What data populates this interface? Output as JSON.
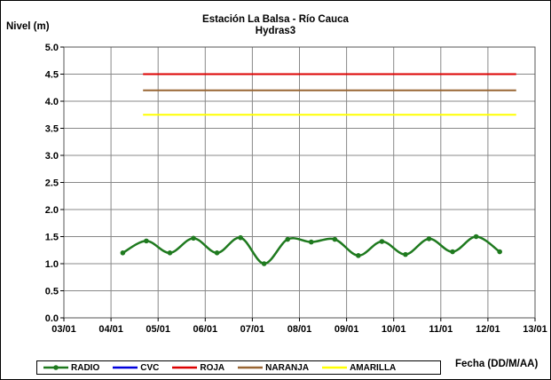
{
  "chart_data": {
    "type": "line",
    "title": "Estación La Balsa - Río Cauca",
    "subtitle": "Hydras3",
    "ylabel": "Nivel (m)",
    "xlabel": "Fecha (DD/M/AA)",
    "ylim": [
      0.0,
      5.0
    ],
    "yticks": [
      "0.0",
      "0.5",
      "1.0",
      "1.5",
      "2.0",
      "2.5",
      "3.0",
      "3.5",
      "4.0",
      "4.5",
      "5.0"
    ],
    "xticks": [
      "03/01",
      "04/01",
      "05/01",
      "06/01",
      "07/01",
      "08/01",
      "09/01",
      "10/01",
      "11/01",
      "12/01",
      "13/01"
    ],
    "grid": true,
    "legend_position": "bottom",
    "series": [
      {
        "name": "RADIO",
        "color": "#1f7a1f",
        "marker": "circle",
        "smooth": true,
        "x": [
          4.25,
          4.75,
          5.25,
          5.75,
          6.25,
          6.75,
          7.25,
          7.75,
          8.25,
          8.75,
          9.25,
          9.75,
          10.25,
          10.75,
          11.25,
          11.75,
          12.25
        ],
        "values": [
          1.2,
          1.42,
          1.2,
          1.47,
          1.2,
          1.48,
          1.0,
          1.45,
          1.4,
          1.45,
          1.15,
          1.41,
          1.17,
          1.46,
          1.22,
          1.5,
          1.22
        ]
      },
      {
        "name": "CVC",
        "color": "#0000dd",
        "x": [],
        "values": []
      },
      {
        "name": "ROJA",
        "color": "#dd0000",
        "x": [
          4.68,
          12.6
        ],
        "values": [
          4.5,
          4.5
        ]
      },
      {
        "name": "NARANJA",
        "color": "#996633",
        "x": [
          4.68,
          12.6
        ],
        "values": [
          4.2,
          4.2
        ]
      },
      {
        "name": "AMARILLA",
        "color": "#ffff00",
        "x": [
          4.68,
          12.6
        ],
        "values": [
          3.75,
          3.75
        ]
      }
    ]
  }
}
